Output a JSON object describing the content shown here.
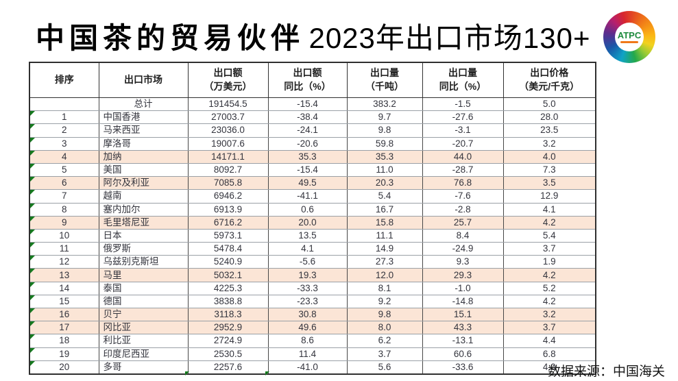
{
  "title": {
    "part1": "中国茶的贸易伙伴",
    "part2": "2023年出口市场130+"
  },
  "logo": {
    "text": "ATPC"
  },
  "footer": {
    "source": "数据来源：中国海关"
  },
  "colors": {
    "highlight_row": "#fbe5d6",
    "indicator_green": "#157a1e",
    "logo_text_green": "#1d8a3c"
  },
  "table": {
    "headers": [
      {
        "lines": [
          "排序"
        ]
      },
      {
        "lines": [
          "出口市场"
        ]
      },
      {
        "lines": [
          "出口额",
          "（万美元）"
        ]
      },
      {
        "lines": [
          "出口额",
          "同比（%）"
        ]
      },
      {
        "lines": [
          "出口量",
          "（千吨）"
        ]
      },
      {
        "lines": [
          "出口量",
          "同比（%）"
        ]
      },
      {
        "lines": [
          "出口价格",
          "（美元/千克）"
        ]
      }
    ],
    "rows": [
      {
        "rank": "",
        "market": "总计",
        "export_value": "191454.5",
        "value_yoy": "-15.4",
        "export_volume": "383.2",
        "volume_yoy": "-1.5",
        "price": "5.0",
        "highlight": false,
        "market_centered": true,
        "indicator": false
      },
      {
        "rank": "1",
        "market": "中国香港",
        "export_value": "27003.7",
        "value_yoy": "-38.4",
        "export_volume": "9.7",
        "volume_yoy": "-27.6",
        "price": "28.0",
        "highlight": false,
        "market_centered": false,
        "indicator": true
      },
      {
        "rank": "2",
        "market": "马来西亚",
        "export_value": "23036.0",
        "value_yoy": "-24.1",
        "export_volume": "9.8",
        "volume_yoy": "-3.1",
        "price": "23.5",
        "highlight": false,
        "market_centered": false,
        "indicator": true
      },
      {
        "rank": "3",
        "market": "摩洛哥",
        "export_value": "19007.6",
        "value_yoy": "-20.6",
        "export_volume": "59.8",
        "volume_yoy": "-20.7",
        "price": "3.2",
        "highlight": false,
        "market_centered": false,
        "indicator": true
      },
      {
        "rank": "4",
        "market": "加纳",
        "export_value": "14171.1",
        "value_yoy": "35.3",
        "export_volume": "35.3",
        "volume_yoy": "44.0",
        "price": "4.0",
        "highlight": true,
        "market_centered": false,
        "indicator": true
      },
      {
        "rank": "5",
        "market": "美国",
        "export_value": "8092.7",
        "value_yoy": "-15.4",
        "export_volume": "11.0",
        "volume_yoy": "-28.7",
        "price": "7.3",
        "highlight": false,
        "market_centered": false,
        "indicator": true
      },
      {
        "rank": "6",
        "market": "阿尔及利亚",
        "export_value": "7085.8",
        "value_yoy": "49.5",
        "export_volume": "20.3",
        "volume_yoy": "76.8",
        "price": "3.5",
        "highlight": true,
        "market_centered": false,
        "indicator": true
      },
      {
        "rank": "7",
        "market": "越南",
        "export_value": "6946.2",
        "value_yoy": "-41.1",
        "export_volume": "5.4",
        "volume_yoy": "-7.6",
        "price": "12.9",
        "highlight": false,
        "market_centered": false,
        "indicator": true
      },
      {
        "rank": "8",
        "market": "塞内加尔",
        "export_value": "6913.9",
        "value_yoy": "0.6",
        "export_volume": "16.7",
        "volume_yoy": "-2.8",
        "price": "4.1",
        "highlight": false,
        "market_centered": false,
        "indicator": true
      },
      {
        "rank": "9",
        "market": "毛里塔尼亚",
        "export_value": "6716.2",
        "value_yoy": "20.0",
        "export_volume": "15.8",
        "volume_yoy": "25.7",
        "price": "4.2",
        "highlight": true,
        "market_centered": false,
        "indicator": true
      },
      {
        "rank": "10",
        "market": "日本",
        "export_value": "5973.1",
        "value_yoy": "13.5",
        "export_volume": "11.1",
        "volume_yoy": "8.4",
        "price": "5.4",
        "highlight": false,
        "market_centered": false,
        "indicator": true
      },
      {
        "rank": "11",
        "market": "俄罗斯",
        "export_value": "5478.4",
        "value_yoy": "4.1",
        "export_volume": "14.9",
        "volume_yoy": "-24.9",
        "price": "3.7",
        "highlight": false,
        "market_centered": false,
        "indicator": true
      },
      {
        "rank": "12",
        "market": "乌兹别克斯坦",
        "export_value": "5240.9",
        "value_yoy": "-5.6",
        "export_volume": "27.3",
        "volume_yoy": "9.3",
        "price": "1.9",
        "highlight": false,
        "market_centered": false,
        "indicator": true
      },
      {
        "rank": "13",
        "market": "马里",
        "export_value": "5032.1",
        "value_yoy": "19.3",
        "export_volume": "12.0",
        "volume_yoy": "29.3",
        "price": "4.2",
        "highlight": true,
        "market_centered": false,
        "indicator": true
      },
      {
        "rank": "14",
        "market": "泰国",
        "export_value": "4225.3",
        "value_yoy": "-33.3",
        "export_volume": "8.1",
        "volume_yoy": "-1.0",
        "price": "5.2",
        "highlight": false,
        "market_centered": false,
        "indicator": true
      },
      {
        "rank": "15",
        "market": "德国",
        "export_value": "3838.8",
        "value_yoy": "-23.3",
        "export_volume": "9.2",
        "volume_yoy": "-14.8",
        "price": "4.2",
        "highlight": false,
        "market_centered": false,
        "indicator": true
      },
      {
        "rank": "16",
        "market": "贝宁",
        "export_value": "3118.3",
        "value_yoy": "30.8",
        "export_volume": "9.8",
        "volume_yoy": "15.1",
        "price": "3.2",
        "highlight": true,
        "market_centered": false,
        "indicator": true
      },
      {
        "rank": "17",
        "market": "冈比亚",
        "export_value": "2952.9",
        "value_yoy": "49.6",
        "export_volume": "8.0",
        "volume_yoy": "43.3",
        "price": "3.7",
        "highlight": true,
        "market_centered": false,
        "indicator": true
      },
      {
        "rank": "18",
        "market": "利比亚",
        "export_value": "2724.9",
        "value_yoy": "8.6",
        "export_volume": "6.2",
        "volume_yoy": "-13.1",
        "price": "4.4",
        "highlight": false,
        "market_centered": false,
        "indicator": true
      },
      {
        "rank": "19",
        "market": "印度尼西亚",
        "export_value": "2530.5",
        "value_yoy": "11.4",
        "export_volume": "3.7",
        "volume_yoy": "60.6",
        "price": "6.8",
        "highlight": false,
        "market_centered": false,
        "indicator": true
      },
      {
        "rank": "20",
        "market": "多哥",
        "export_value": "2257.6",
        "value_yoy": "-41.0",
        "export_volume": "5.6",
        "volume_yoy": "-33.6",
        "price": "4.0",
        "highlight": false,
        "market_centered": false,
        "indicator": true
      }
    ]
  }
}
